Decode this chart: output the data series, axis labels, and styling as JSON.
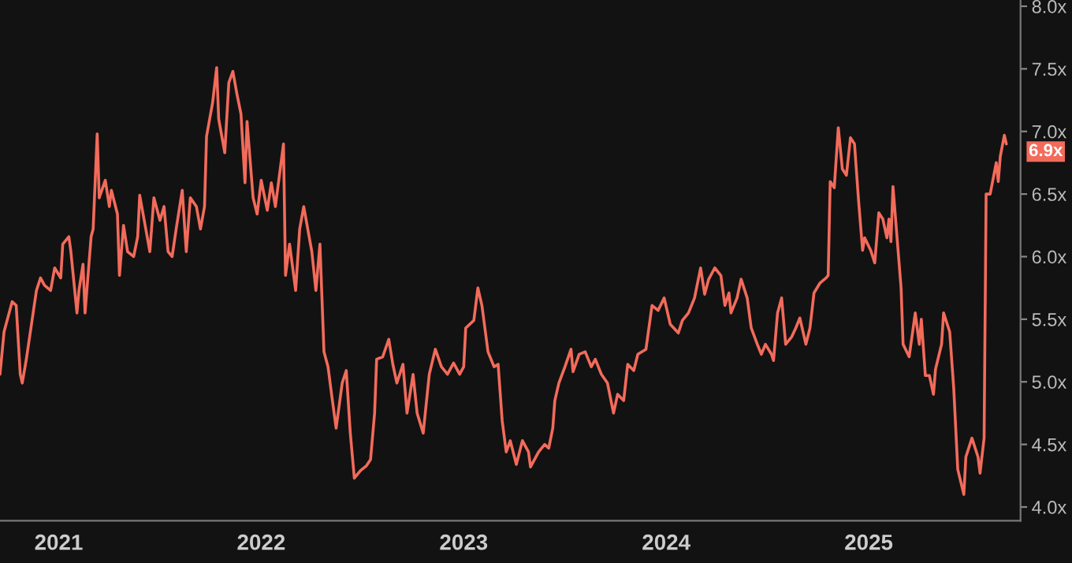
{
  "chart_data": {
    "type": "line",
    "x": [
      2020.71,
      2020.73,
      2020.77,
      2020.79,
      2020.81,
      2020.82,
      2020.84,
      2020.87,
      2020.89,
      2020.91,
      2020.93,
      2020.96,
      2020.98,
      2021.01,
      2021.02,
      2021.05,
      2021.06,
      2021.09,
      2021.1,
      2021.12,
      2021.13,
      2021.16,
      2021.17,
      2021.19,
      2021.2,
      2021.23,
      2021.25,
      2021.26,
      2021.29,
      2021.3,
      2021.32,
      2021.34,
      2021.37,
      2021.39,
      2021.4,
      2021.43,
      2021.45,
      2021.47,
      2021.5,
      2021.52,
      2021.54,
      2021.56,
      2021.58,
      2021.61,
      2021.63,
      2021.65,
      2021.68,
      2021.7,
      2021.72,
      2021.73,
      2021.76,
      2021.78,
      2021.79,
      2021.82,
      2021.84,
      2021.86,
      2021.88,
      2021.9,
      2021.92,
      2021.93,
      2021.96,
      2021.98,
      2022.0,
      2022.03,
      2022.05,
      2022.07,
      2022.11,
      2022.12,
      2022.14,
      2022.17,
      2022.19,
      2022.21,
      2022.25,
      2022.27,
      2022.29,
      2022.31,
      2022.33,
      2022.35,
      2022.37,
      2022.4,
      2022.42,
      2022.44,
      2022.46,
      2022.49,
      2022.52,
      2022.54,
      2022.56,
      2022.57,
      2022.6,
      2022.63,
      2022.65,
      2022.67,
      2022.7,
      2022.72,
      2022.75,
      2022.77,
      2022.8,
      2022.83,
      2022.86,
      2022.89,
      2022.92,
      2022.95,
      2022.98,
      2023.0,
      2023.01,
      2023.05,
      2023.07,
      2023.09,
      2023.12,
      2023.15,
      2023.17,
      2023.19,
      2023.21,
      2023.23,
      2023.26,
      2023.29,
      2023.32,
      2023.33,
      2023.37,
      2023.4,
      2023.42,
      2023.44,
      2023.45,
      2023.47,
      2023.5,
      2023.53,
      2023.54,
      2023.57,
      2023.6,
      2023.63,
      2023.65,
      2023.68,
      2023.71,
      2023.74,
      2023.76,
      2023.79,
      2023.81,
      2023.84,
      2023.86,
      2023.9,
      2023.93,
      2023.96,
      2023.99,
      2024.02,
      2024.06,
      2024.08,
      2024.11,
      2024.14,
      2024.17,
      2024.19,
      2024.21,
      2024.24,
      2024.27,
      2024.29,
      2024.31,
      2024.32,
      2024.35,
      2024.37,
      2024.4,
      2024.42,
      2024.45,
      2024.47,
      2024.49,
      2024.52,
      2024.53,
      2024.55,
      2024.57,
      2024.59,
      2024.62,
      2024.64,
      2024.66,
      2024.69,
      2024.71,
      2024.73,
      2024.76,
      2024.79,
      2024.8,
      2024.81,
      2024.83,
      2024.85,
      2024.87,
      2024.89,
      2024.91,
      2024.93,
      2024.95,
      2024.97,
      2024.98,
      2025.01,
      2025.03,
      2025.05,
      2025.07,
      2025.09,
      2025.1,
      2025.11,
      2025.12,
      2025.16,
      2025.17,
      2025.2,
      2025.23,
      2025.25,
      2025.26,
      2025.28,
      2025.3,
      2025.32,
      2025.33,
      2025.36,
      2025.37,
      2025.4,
      2025.42,
      2025.44,
      2025.47,
      2025.48,
      2025.51,
      2025.54,
      2025.55,
      2025.57,
      2025.58,
      2025.6,
      2025.63,
      2025.64,
      2025.65,
      2025.67,
      2025.68
    ],
    "series": [
      {
        "color": "#f26b5b",
        "values": [
          5.06,
          5.4,
          5.64,
          5.61,
          5.06,
          4.99,
          5.18,
          5.51,
          5.73,
          5.83,
          5.77,
          5.73,
          5.91,
          5.83,
          6.1,
          6.16,
          6.04,
          5.55,
          5.73,
          5.94,
          5.55,
          6.16,
          6.22,
          6.98,
          6.47,
          6.61,
          6.4,
          6.53,
          6.34,
          5.85,
          6.25,
          6.04,
          6.0,
          6.16,
          6.49,
          6.22,
          6.04,
          6.47,
          6.29,
          6.4,
          6.04,
          6.0,
          6.22,
          6.53,
          6.04,
          6.47,
          6.4,
          6.22,
          6.4,
          6.96,
          7.23,
          7.51,
          7.1,
          6.83,
          7.39,
          7.48,
          7.3,
          7.14,
          6.59,
          7.08,
          6.47,
          6.34,
          6.61,
          6.37,
          6.59,
          6.4,
          6.9,
          5.85,
          6.1,
          5.73,
          6.22,
          6.4,
          6.04,
          5.73,
          6.1,
          5.24,
          5.12,
          4.87,
          4.63,
          4.99,
          5.09,
          4.59,
          4.23,
          4.29,
          4.33,
          4.38,
          4.75,
          5.18,
          5.2,
          5.34,
          5.14,
          4.99,
          5.14,
          4.75,
          5.06,
          4.75,
          4.59,
          5.06,
          5.26,
          5.12,
          5.06,
          5.15,
          5.06,
          5.12,
          5.43,
          5.49,
          5.75,
          5.61,
          5.24,
          5.12,
          5.14,
          4.69,
          4.44,
          4.53,
          4.34,
          4.53,
          4.44,
          4.32,
          4.44,
          4.5,
          4.47,
          4.63,
          4.85,
          4.99,
          5.12,
          5.26,
          5.08,
          5.22,
          5.24,
          5.12,
          5.18,
          5.06,
          4.99,
          4.75,
          4.9,
          4.85,
          5.14,
          5.09,
          5.22,
          5.26,
          5.61,
          5.57,
          5.67,
          5.46,
          5.39,
          5.49,
          5.55,
          5.67,
          5.91,
          5.7,
          5.82,
          5.91,
          5.85,
          5.61,
          5.71,
          5.55,
          5.67,
          5.82,
          5.67,
          5.43,
          5.3,
          5.22,
          5.3,
          5.22,
          5.17,
          5.55,
          5.67,
          5.3,
          5.36,
          5.43,
          5.51,
          5.3,
          5.43,
          5.71,
          5.79,
          5.83,
          5.85,
          6.6,
          6.55,
          7.03,
          6.7,
          6.65,
          6.95,
          6.9,
          6.45,
          6.05,
          6.15,
          6.05,
          5.95,
          6.35,
          6.3,
          6.15,
          6.3,
          6.12,
          6.56,
          5.75,
          5.3,
          5.2,
          5.55,
          5.3,
          5.5,
          5.05,
          5.05,
          4.9,
          5.1,
          5.3,
          5.55,
          5.4,
          4.95,
          4.3,
          4.1,
          4.4,
          4.55,
          4.4,
          4.27,
          4.55,
          6.5,
          6.5,
          6.75,
          6.6,
          6.8,
          6.97,
          6.9
        ]
      }
    ],
    "xlim": [
      2020.71,
      2025.75
    ],
    "xticks": [
      2021,
      2022,
      2023,
      2024,
      2025
    ],
    "ylim": [
      3.89,
      8.05
    ],
    "yticks": [
      {
        "value": 4.0,
        "label": "4.0x"
      },
      {
        "value": 4.5,
        "label": "4.5x"
      },
      {
        "value": 5.0,
        "label": "5.0x"
      },
      {
        "value": 5.5,
        "label": "5.5x"
      },
      {
        "value": 6.0,
        "label": "6.0x"
      },
      {
        "value": 6.5,
        "label": "6.5x"
      },
      {
        "value": 7.0,
        "label": "7.0x"
      },
      {
        "value": 7.5,
        "label": "7.5x"
      },
      {
        "value": 8.0,
        "label": "8.0x"
      }
    ],
    "annotations": [
      "6.9x"
    ],
    "grid": false
  }
}
